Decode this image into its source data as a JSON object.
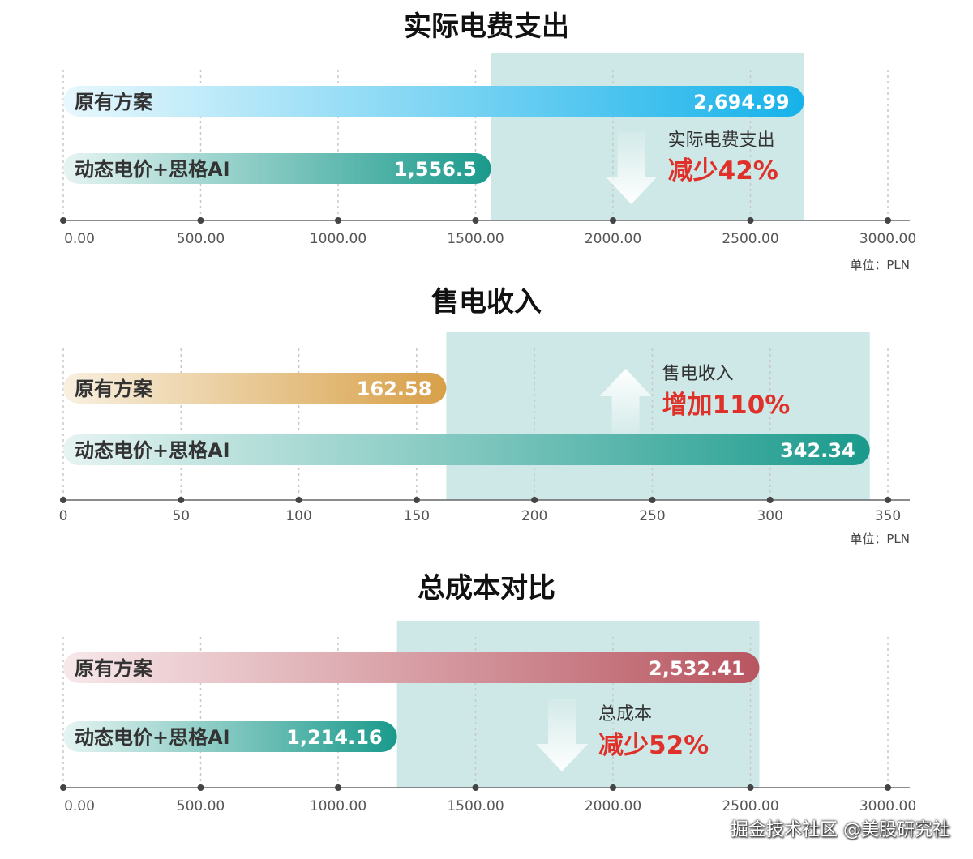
{
  "colors": {
    "highlight": "#cde8e6",
    "axis": "#666666",
    "grid": "#c8c8c8",
    "annotation_red": "#e0302a",
    "blue_start": "#e8f8fd",
    "blue_end": "#16b2ea",
    "gold_start": "#f8f0e0",
    "gold_end": "#d8a048",
    "teal_start": "#e6f4f2",
    "teal_end": "#1a9a8c",
    "rose_start": "#f7e8ea",
    "rose_end": "#b85560"
  },
  "chart_data": [
    {
      "type": "bar",
      "orientation": "horizontal",
      "title": "实际电费支出",
      "unit": "单位：PLN",
      "xlim": [
        0,
        3000
      ],
      "ticks": [
        0,
        500,
        1000,
        1500,
        2000,
        2500,
        3000
      ],
      "tick_labels": [
        "0.00",
        "500.00",
        "1000.00",
        "1500.00",
        "2000.00",
        "2500.00",
        "3000.00"
      ],
      "categories": [
        "原有方案",
        "动态电价+思格AI"
      ],
      "values": [
        2694.99,
        1556.5
      ],
      "value_labels": [
        "2,694.99",
        "1,556.5"
      ],
      "series_colors": [
        "blue",
        "teal"
      ],
      "annotation": {
        "label": "实际电费支出",
        "value": "减少42%",
        "arrow": "down"
      },
      "highlight_range": [
        1556.5,
        2694.99
      ]
    },
    {
      "type": "bar",
      "orientation": "horizontal",
      "title": "售电收入",
      "unit": "单位：PLN",
      "xlim": [
        0,
        350
      ],
      "ticks": [
        0,
        50,
        100,
        150,
        200,
        250,
        300,
        350
      ],
      "tick_labels": [
        "0",
        "50",
        "100",
        "150",
        "200",
        "250",
        "300",
        "350"
      ],
      "categories": [
        "原有方案",
        "动态电价+思格AI"
      ],
      "values": [
        162.58,
        342.34
      ],
      "value_labels": [
        "162.58",
        "342.34"
      ],
      "series_colors": [
        "gold",
        "teal"
      ],
      "annotation": {
        "label": "售电收入",
        "value": "增加110%",
        "arrow": "up"
      },
      "highlight_range": [
        162.58,
        342.34
      ]
    },
    {
      "type": "bar",
      "orientation": "horizontal",
      "title": "总成本对比",
      "unit": "",
      "xlim": [
        0,
        3000
      ],
      "ticks": [
        0,
        500,
        1000,
        1500,
        2000,
        2500,
        3000
      ],
      "tick_labels": [
        "0.00",
        "500.00",
        "1000.00",
        "1500.00",
        "2000.00",
        "2500.00",
        "3000.00"
      ],
      "categories": [
        "原有方案",
        "动态电价+思格AI"
      ],
      "values": [
        2532.41,
        1214.16
      ],
      "value_labels": [
        "2,532.41",
        "1,214.16"
      ],
      "series_colors": [
        "rose",
        "teal"
      ],
      "annotation": {
        "label": "总成本",
        "value": "减少52%",
        "arrow": "down"
      },
      "highlight_range": [
        1214.16,
        2532.41
      ]
    }
  ],
  "watermark": "掘金技术社区 @美股研究社"
}
